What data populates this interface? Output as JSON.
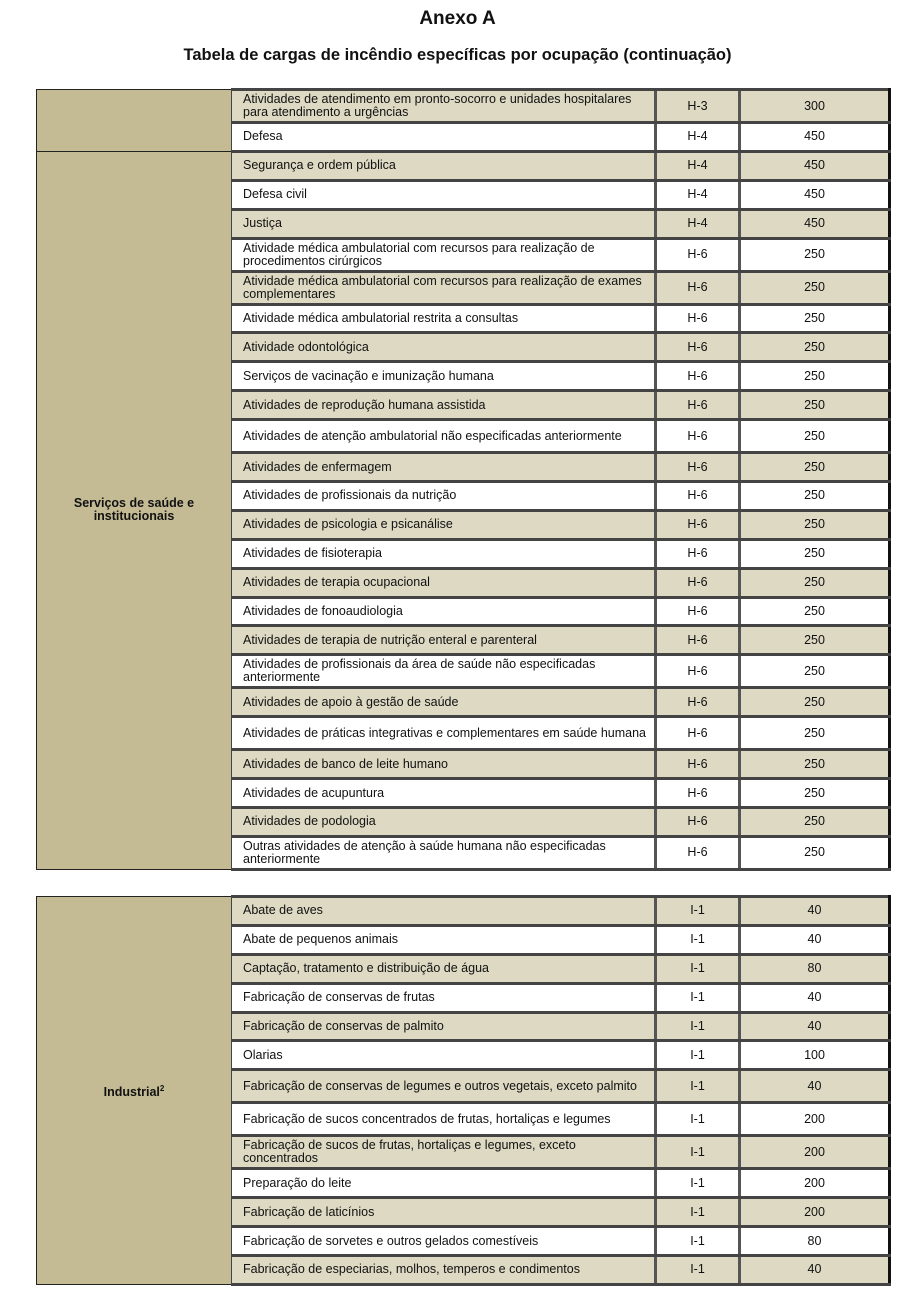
{
  "header": {
    "title": "Anexo A",
    "subtitle": "Tabela de cargas de incêndio específicas por ocupação (continuação)"
  },
  "tables": [
    {
      "groups": [
        {
          "label": "",
          "rows": [
            [
              "Atividades de atendimento em pronto-socorro e unidades hospitalares para atendimento a urgências",
              "H-3",
              "300"
            ],
            [
              "Defesa",
              "H-4",
              "450"
            ]
          ]
        },
        {
          "label": "Serviços de saúde e institucionais",
          "rows": [
            [
              "Segurança e ordem pública",
              "H-4",
              "450"
            ],
            [
              "Defesa civil",
              "H-4",
              "450"
            ],
            [
              "Justiça",
              "H-4",
              "450"
            ],
            [
              "Atividade médica ambulatorial com recursos para realização de procedimentos cirúrgicos",
              "H-6",
              "250"
            ],
            [
              "Atividade médica ambulatorial com recursos para realização de exames complementares",
              "H-6",
              "250"
            ],
            [
              "Atividade médica ambulatorial restrita a consultas",
              "H-6",
              "250"
            ],
            [
              "Atividade odontológica",
              "H-6",
              "250"
            ],
            [
              "Serviços de vacinação e imunização humana",
              "H-6",
              "250"
            ],
            [
              "Atividades de reprodução humana assistida",
              "H-6",
              "250"
            ],
            [
              "Atividades de atenção ambulatorial não especificadas anteriormente",
              "H-6",
              "250"
            ],
            [
              "Atividades de enfermagem",
              "H-6",
              "250"
            ],
            [
              "Atividades de profissionais da nutrição",
              "H-6",
              "250"
            ],
            [
              "Atividades de psicologia e psicanálise",
              "H-6",
              "250"
            ],
            [
              "Atividades de fisioterapia",
              "H-6",
              "250"
            ],
            [
              "Atividades de terapia ocupacional",
              "H-6",
              "250"
            ],
            [
              "Atividades de fonoaudiologia",
              "H-6",
              "250"
            ],
            [
              "Atividades de terapia de nutrição enteral e parenteral",
              "H-6",
              "250"
            ],
            [
              "Atividades de profissionais da área de saúde não especificadas anteriormente",
              "H-6",
              "250"
            ],
            [
              "Atividades de apoio à gestão de saúde",
              "H-6",
              "250"
            ],
            [
              "Atividades de práticas integrativas e complementares em saúde humana",
              "H-6",
              "250"
            ],
            [
              "Atividades de banco de leite humano",
              "H-6",
              "250"
            ],
            [
              "Atividades de acupuntura",
              "H-6",
              "250"
            ],
            [
              "Atividades de podologia",
              "H-6",
              "250"
            ],
            [
              "Outras atividades de atenção à saúde humana não especificadas anteriormente",
              "H-6",
              "250"
            ]
          ]
        }
      ]
    },
    {
      "groups": [
        {
          "label": "Industrial",
          "sup": "2",
          "rows": [
            [
              "Abate de aves",
              "I-1",
              "40"
            ],
            [
              "Abate de pequenos animais",
              "I-1",
              "40"
            ],
            [
              "Captação, tratamento e distribuição de água",
              "I-1",
              "80"
            ],
            [
              "Fabricação de conservas de frutas",
              "I-1",
              "40"
            ],
            [
              "Fabricação de conservas de palmito",
              "I-1",
              "40"
            ],
            [
              "Olarias",
              "I-1",
              "100"
            ],
            [
              "Fabricação de conservas de legumes e outros vegetais, exceto palmito",
              "I-1",
              "40"
            ],
            [
              "Fabricação de sucos concentrados de frutas, hortaliças e legumes",
              "I-1",
              "200"
            ],
            [
              "Fabricação de sucos de frutas, hortaliças e legumes, exceto concentrados",
              "I-1",
              "200"
            ],
            [
              "Preparação do leite",
              "I-1",
              "200"
            ],
            [
              "Fabricação de laticínios",
              "I-1",
              "200"
            ],
            [
              "Fabricação de sorvetes e outros gelados comestíveis",
              "I-1",
              "80"
            ],
            [
              "Fabricação de especiarias, molhos, temperos e condimentos",
              "I-1",
              "40"
            ]
          ]
        }
      ]
    }
  ]
}
